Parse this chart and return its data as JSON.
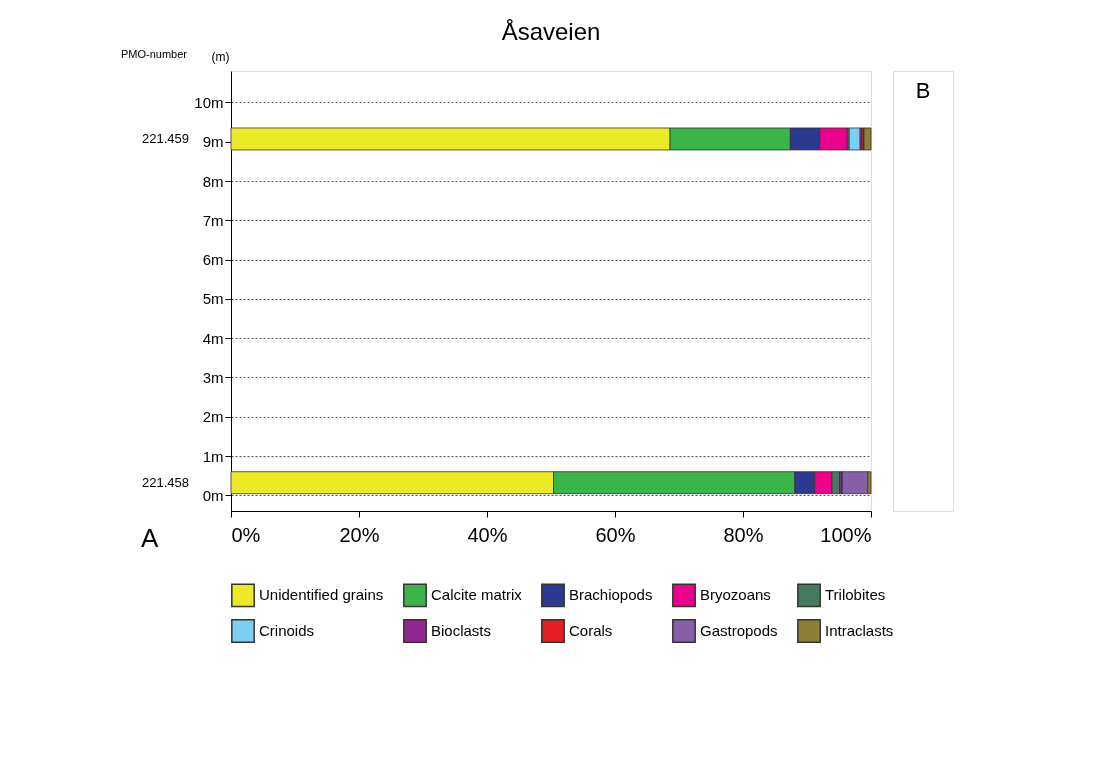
{
  "chart_data": {
    "type": "bar",
    "title": "Åsaveien",
    "ylabel": "(m)",
    "orientation": "horizontal",
    "stacked": true,
    "x": [
      9.07,
      0.32
    ],
    "series": [
      {
        "name": "Unidentified grains",
        "color": "#ecea27",
        "values": [
          68.6,
          50.4
        ]
      },
      {
        "name": "Calcite matrix",
        "color": "#3bb44a",
        "values": [
          18.8,
          37.7
        ]
      },
      {
        "name": "Brachiopods",
        "color": "#2b3990",
        "values": [
          4.6,
          3.1
        ]
      },
      {
        "name": "Bryozoans",
        "color": "#ec008c",
        "values": [
          4.3,
          2.7
        ]
      },
      {
        "name": "Trilobites",
        "color": "#447a5e",
        "values": [
          0.3,
          1.2
        ]
      },
      {
        "name": "Crinoids",
        "color": "#7ccff0",
        "values": [
          1.7,
          0
        ]
      },
      {
        "name": "Bioclasts",
        "color": "#92278f",
        "values": [
          0.3,
          0.4
        ]
      },
      {
        "name": "Corals",
        "color": "#e21e26",
        "values": [
          0.3,
          0
        ]
      },
      {
        "name": "Gastropods",
        "color": "#8560a8",
        "values": [
          0,
          4.0
        ]
      },
      {
        "name": "Intraclasts",
        "color": "#8f7e36",
        "values": [
          1.1,
          0.5
        ]
      }
    ],
    "xlim": [
      0,
      100
    ],
    "xticks": [
      {
        "value": 0,
        "label": "0%"
      },
      {
        "value": 20,
        "label": "20%"
      },
      {
        "value": 40,
        "label": "40%"
      },
      {
        "value": 60,
        "label": "60%"
      },
      {
        "value": 80,
        "label": "80%"
      },
      {
        "value": 100,
        "label": "100%"
      }
    ],
    "ylim": [
      -0.4,
      10.8
    ],
    "yticks": [
      {
        "value": 0,
        "label": "0m"
      },
      {
        "value": 1,
        "label": "1m"
      },
      {
        "value": 2,
        "label": "2m"
      },
      {
        "value": 3,
        "label": "3m"
      },
      {
        "value": 4,
        "label": "4m"
      },
      {
        "value": 5,
        "label": "5m"
      },
      {
        "value": 6,
        "label": "6m"
      },
      {
        "value": 7,
        "label": "7m"
      },
      {
        "value": 8,
        "label": "8m"
      },
      {
        "value": 9,
        "label": "9m"
      },
      {
        "value": 10,
        "label": "10m"
      }
    ],
    "grid": "y",
    "legend": "bottom",
    "annotations": [
      "PMO-number",
      "221.459",
      "221.458",
      "A",
      "B"
    ]
  }
}
